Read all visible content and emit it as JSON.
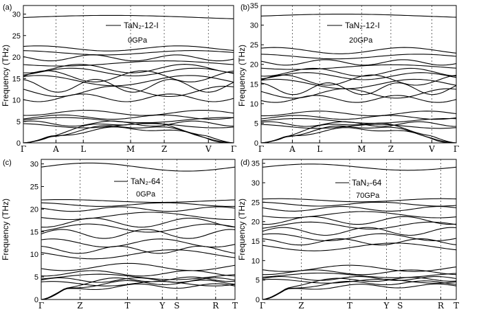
{
  "figure": {
    "ylabel": "Frequency (THz)"
  },
  "chart_data": [
    {
      "type": "line",
      "panel": "(a)",
      "legend": "TaN₂-12-I",
      "subtitle": "0GPa",
      "ylim": [
        0,
        32
      ],
      "yticks": [
        0,
        5,
        10,
        15,
        20,
        25,
        30
      ],
      "kpoints": [
        "Γ",
        "A",
        "L",
        "M",
        "Z",
        "V",
        "Γ"
      ],
      "kpos": [
        0,
        0.155,
        0.285,
        0.51,
        0.67,
        0.88,
        1.0
      ],
      "dashed": [
        1,
        2,
        3,
        4,
        5
      ],
      "bands": [
        {
          "y": 29.2,
          "a": 0.5,
          "w": 0.6
        },
        {
          "y": 22.0,
          "a": 0.6,
          "w": 1.5
        },
        {
          "y": 21.0,
          "a": 0.5,
          "w": 1.2
        },
        {
          "y": 19.8,
          "a": 0.7,
          "w": 2.5
        },
        {
          "y": 18.5,
          "a": 0.6,
          "w": 1.0
        },
        {
          "y": 17.3,
          "a": 1.0,
          "w": 2.0
        },
        {
          "y": 16.5,
          "a": 0.9,
          "w": 1.7
        },
        {
          "y": 15.5,
          "a": 1.3,
          "w": 2.2
        },
        {
          "y": 14.5,
          "a": 1.2,
          "w": 1.4
        },
        {
          "y": 13.3,
          "a": 1.5,
          "w": 2.8
        },
        {
          "y": 12.0,
          "a": 1.2,
          "w": 1.9
        },
        {
          "y": 10.5,
          "a": 0.9,
          "w": 2.4
        },
        {
          "y": 7.0,
          "a": 0.6,
          "w": 1.8
        },
        {
          "y": 6.0,
          "a": 0.5,
          "w": 2.1
        },
        {
          "y": 5.3,
          "a": 0.6,
          "w": 1.3
        },
        {
          "y": 4.5,
          "a": 0.6,
          "w": 2.6
        },
        {
          "y": 4.0,
          "a": 0.5,
          "w": 1.6
        }
      ],
      "acoustic": [
        3.4,
        3.9,
        4.6
      ]
    },
    {
      "type": "line",
      "panel": "(b)",
      "legend": "TaN₂-12-I",
      "subtitle": "20GPa",
      "ylim": [
        0,
        35
      ],
      "yticks": [
        0,
        5,
        10,
        15,
        20,
        25,
        30,
        35
      ],
      "kpoints": [
        "Γ",
        "A",
        "L",
        "M",
        "Z",
        "V",
        "Γ"
      ],
      "kpos": [
        0,
        0.16,
        0.3,
        0.515,
        0.665,
        0.875,
        1.0
      ],
      "dashed": [
        1,
        2,
        3,
        4,
        5
      ],
      "bands": [
        {
          "y": 32.3,
          "a": 0.5,
          "w": 0.6
        },
        {
          "y": 23.5,
          "a": 0.8,
          "w": 1.5
        },
        {
          "y": 22.0,
          "a": 0.6,
          "w": 1.2
        },
        {
          "y": 20.5,
          "a": 0.7,
          "w": 2.5
        },
        {
          "y": 19.3,
          "a": 0.6,
          "w": 1.0
        },
        {
          "y": 18.0,
          "a": 1.0,
          "w": 2.0
        },
        {
          "y": 17.0,
          "a": 0.9,
          "w": 1.7
        },
        {
          "y": 16.0,
          "a": 1.3,
          "w": 2.2
        },
        {
          "y": 15.0,
          "a": 1.2,
          "w": 1.4
        },
        {
          "y": 13.8,
          "a": 1.5,
          "w": 2.8
        },
        {
          "y": 12.6,
          "a": 1.2,
          "w": 1.9
        },
        {
          "y": 11.2,
          "a": 0.9,
          "w": 2.4
        },
        {
          "y": 7.5,
          "a": 0.6,
          "w": 1.8
        },
        {
          "y": 6.5,
          "a": 0.5,
          "w": 2.1
        },
        {
          "y": 5.6,
          "a": 0.6,
          "w": 1.3
        },
        {
          "y": 4.8,
          "a": 0.6,
          "w": 2.6
        },
        {
          "y": 4.2,
          "a": 0.5,
          "w": 1.6
        }
      ],
      "acoustic": [
        3.6,
        4.2,
        5.0
      ]
    },
    {
      "type": "line",
      "panel": "(c)",
      "legend": "TaN₂-64",
      "subtitle": "0GPa",
      "ylim": [
        0,
        31
      ],
      "yticks": [
        0,
        5,
        10,
        15,
        20,
        25,
        30
      ],
      "kpoints": [
        "Γ",
        "Z",
        "T",
        "Y",
        "S",
        "R",
        "T"
      ],
      "kpos": [
        0,
        0.2,
        0.445,
        0.625,
        0.7,
        0.9,
        1.0
      ],
      "dashed": [
        1,
        2,
        3,
        4,
        5
      ],
      "bands": [
        {
          "y": 29.3,
          "a": 0.9,
          "w": 1.0
        },
        {
          "y": 21.8,
          "a": 0.3,
          "w": 1.0
        },
        {
          "y": 21.0,
          "a": 0.4,
          "w": 1.5
        },
        {
          "y": 20.0,
          "a": 0.5,
          "w": 2.0
        },
        {
          "y": 18.5,
          "a": 0.8,
          "w": 1.2
        },
        {
          "y": 17.0,
          "a": 1.0,
          "w": 2.0
        },
        {
          "y": 15.8,
          "a": 0.9,
          "w": 1.6
        },
        {
          "y": 14.5,
          "a": 1.0,
          "w": 2.3
        },
        {
          "y": 12.5,
          "a": 0.9,
          "w": 1.8
        },
        {
          "y": 11.0,
          "a": 0.8,
          "w": 2.4
        },
        {
          "y": 10.0,
          "a": 1.0,
          "w": 1.2
        },
        {
          "y": 7.2,
          "a": 0.8,
          "w": 1.5
        },
        {
          "y": 5.8,
          "a": 0.6,
          "w": 2.0
        },
        {
          "y": 5.0,
          "a": 0.6,
          "w": 1.3
        },
        {
          "y": 4.3,
          "a": 0.5,
          "w": 2.5
        },
        {
          "y": 3.5,
          "a": 0.5,
          "w": 1.8
        }
      ],
      "acoustic": [
        3.0,
        3.8,
        4.5
      ]
    },
    {
      "type": "line",
      "panel": "(d)",
      "legend": "TaN₂-64",
      "subtitle": "70GPa",
      "ylim": [
        0,
        36
      ],
      "yticks": [
        0,
        5,
        10,
        15,
        20,
        25,
        30,
        35
      ],
      "kpoints": [
        "Γ",
        "Z",
        "T",
        "Y",
        "S",
        "R",
        "T"
      ],
      "kpos": [
        0,
        0.2,
        0.45,
        0.64,
        0.71,
        0.92,
        1.0
      ],
      "dashed": [
        1,
        2,
        3,
        4,
        5
      ],
      "bands": [
        {
          "y": 34.0,
          "a": 0.8,
          "w": 1.0
        },
        {
          "y": 25.5,
          "a": 0.4,
          "w": 1.2
        },
        {
          "y": 24.5,
          "a": 0.5,
          "w": 1.6
        },
        {
          "y": 23.3,
          "a": 0.6,
          "w": 2.0
        },
        {
          "y": 21.8,
          "a": 0.8,
          "w": 1.3
        },
        {
          "y": 20.3,
          "a": 1.0,
          "w": 2.1
        },
        {
          "y": 19.0,
          "a": 0.9,
          "w": 1.6
        },
        {
          "y": 17.5,
          "a": 1.0,
          "w": 2.3
        },
        {
          "y": 16.0,
          "a": 0.9,
          "w": 1.8
        },
        {
          "y": 14.8,
          "a": 0.8,
          "w": 2.4
        },
        {
          "y": 13.5,
          "a": 1.0,
          "w": 1.2
        },
        {
          "y": 8.0,
          "a": 0.8,
          "w": 1.5
        },
        {
          "y": 7.0,
          "a": 0.6,
          "w": 2.0
        },
        {
          "y": 6.2,
          "a": 0.6,
          "w": 1.3
        },
        {
          "y": 5.4,
          "a": 0.5,
          "w": 2.5
        },
        {
          "y": 4.7,
          "a": 0.5,
          "w": 1.8
        }
      ],
      "acoustic": [
        3.5,
        4.3,
        5.2
      ]
    }
  ]
}
